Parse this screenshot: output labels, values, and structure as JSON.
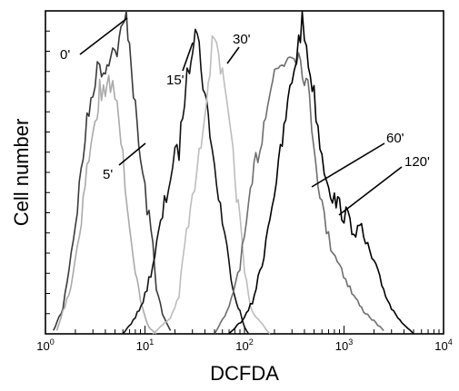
{
  "chart_data": {
    "type": "line",
    "subtype": "flow-cytometry-histogram-overlay",
    "title": "",
    "xlabel": "DCFDA",
    "ylabel": "Cell number",
    "x_scale": "log",
    "xlim": [
      1,
      10000
    ],
    "ylim": [
      0,
      1
    ],
    "grid": false,
    "legend": "none (direct labels with leader lines)",
    "x_ticks": [
      {
        "value": 1,
        "base": "10",
        "exp": "0"
      },
      {
        "value": 10,
        "base": "10",
        "exp": "1"
      },
      {
        "value": 100,
        "base": "10",
        "exp": "2"
      },
      {
        "value": 1000,
        "base": "10",
        "exp": "3"
      },
      {
        "value": 10000,
        "base": "10",
        "exp": "4"
      }
    ],
    "series": [
      {
        "name": "0'",
        "color": "#3a3a3a",
        "values": [
          [
            1.2,
            0.01
          ],
          [
            1.5,
            0.08
          ],
          [
            2.0,
            0.35
          ],
          [
            2.5,
            0.62
          ],
          [
            3.0,
            0.78
          ],
          [
            3.5,
            0.85
          ],
          [
            4.0,
            0.83
          ],
          [
            4.5,
            0.9
          ],
          [
            5.0,
            0.88
          ],
          [
            5.5,
            0.92
          ],
          [
            6.0,
            0.96
          ],
          [
            6.5,
            1.0
          ],
          [
            7.0,
            0.92
          ],
          [
            8.0,
            0.7
          ],
          [
            9.0,
            0.55
          ],
          [
            10.0,
            0.45
          ],
          [
            11.0,
            0.36
          ],
          [
            12.0,
            0.28
          ],
          [
            13.0,
            0.15
          ],
          [
            15.0,
            0.06
          ],
          [
            18.0,
            0.01
          ]
        ]
      },
      {
        "name": "5'",
        "color": "#aaaaaa",
        "values": [
          [
            1.3,
            0.01
          ],
          [
            1.8,
            0.15
          ],
          [
            2.2,
            0.32
          ],
          [
            2.5,
            0.48
          ],
          [
            3.0,
            0.62
          ],
          [
            3.3,
            0.7
          ],
          [
            3.5,
            0.77
          ],
          [
            4.0,
            0.74
          ],
          [
            4.5,
            0.8
          ],
          [
            5.0,
            0.75
          ],
          [
            5.5,
            0.66
          ],
          [
            6.0,
            0.55
          ],
          [
            7.0,
            0.36
          ],
          [
            8.0,
            0.2
          ],
          [
            9.0,
            0.1
          ],
          [
            10.0,
            0.05
          ],
          [
            11.0,
            0.02
          ],
          [
            13.0,
            0.0
          ]
        ]
      },
      {
        "name": "15'",
        "color": "#111111",
        "values": [
          [
            6.0,
            0.0
          ],
          [
            8.0,
            0.05
          ],
          [
            10.0,
            0.12
          ],
          [
            12.0,
            0.22
          ],
          [
            15.0,
            0.37
          ],
          [
            18.0,
            0.5
          ],
          [
            20.0,
            0.55
          ],
          [
            22.0,
            0.58
          ],
          [
            25.0,
            0.75
          ],
          [
            28.0,
            0.85
          ],
          [
            30.0,
            0.92
          ],
          [
            32.0,
            0.98
          ],
          [
            35.0,
            0.9
          ],
          [
            40.0,
            0.75
          ],
          [
            45.0,
            0.65
          ],
          [
            50.0,
            0.52
          ],
          [
            60.0,
            0.36
          ],
          [
            70.0,
            0.22
          ],
          [
            80.0,
            0.12
          ],
          [
            90.0,
            0.07
          ],
          [
            100.0,
            0.02
          ],
          [
            110.0,
            0.0
          ]
        ]
      },
      {
        "name": "30'",
        "color": "#bdbdbd",
        "values": [
          [
            12.0,
            0.0
          ],
          [
            18.0,
            0.05
          ],
          [
            22.0,
            0.12
          ],
          [
            25.0,
            0.28
          ],
          [
            30.0,
            0.42
          ],
          [
            35.0,
            0.55
          ],
          [
            40.0,
            0.72
          ],
          [
            45.0,
            0.85
          ],
          [
            50.0,
            0.95
          ],
          [
            55.0,
            0.9
          ],
          [
            60.0,
            0.8
          ],
          [
            70.0,
            0.65
          ],
          [
            80.0,
            0.5
          ],
          [
            90.0,
            0.35
          ],
          [
            100.0,
            0.2
          ],
          [
            110.0,
            0.12
          ],
          [
            120.0,
            0.07
          ],
          [
            150.0,
            0.03
          ],
          [
            180.0,
            0.0
          ]
        ]
      },
      {
        "name": "60'",
        "color": "#6e6e6e",
        "values": [
          [
            50.0,
            0.0
          ],
          [
            70.0,
            0.08
          ],
          [
            90.0,
            0.22
          ],
          [
            110.0,
            0.38
          ],
          [
            130.0,
            0.55
          ],
          [
            150.0,
            0.62
          ],
          [
            170.0,
            0.75
          ],
          [
            200.0,
            0.82
          ],
          [
            250.0,
            0.86
          ],
          [
            300.0,
            0.9
          ],
          [
            350.0,
            0.88
          ],
          [
            400.0,
            0.82
          ],
          [
            450.0,
            0.74
          ],
          [
            500.0,
            0.6
          ],
          [
            600.0,
            0.4
          ],
          [
            700.0,
            0.3
          ],
          [
            900.0,
            0.22
          ],
          [
            1200.0,
            0.13
          ],
          [
            1500.0,
            0.08
          ],
          [
            2000.0,
            0.04
          ],
          [
            2500.0,
            0.01
          ]
        ]
      },
      {
        "name": "120'",
        "color": "#000000",
        "values": [
          [
            70.0,
            0.0
          ],
          [
            100.0,
            0.05
          ],
          [
            120.0,
            0.1
          ],
          [
            150.0,
            0.22
          ],
          [
            180.0,
            0.38
          ],
          [
            220.0,
            0.52
          ],
          [
            260.0,
            0.68
          ],
          [
            300.0,
            0.8
          ],
          [
            350.0,
            0.92
          ],
          [
            380.0,
            0.98
          ],
          [
            420.0,
            0.9
          ],
          [
            500.0,
            0.75
          ],
          [
            600.0,
            0.56
          ],
          [
            700.0,
            0.48
          ],
          [
            800.0,
            0.42
          ],
          [
            900.0,
            0.4
          ],
          [
            1000.0,
            0.38
          ],
          [
            1200.0,
            0.34
          ],
          [
            1500.0,
            0.32
          ],
          [
            2000.0,
            0.22
          ],
          [
            2500.0,
            0.14
          ],
          [
            3000.0,
            0.08
          ],
          [
            4000.0,
            0.03
          ],
          [
            5000.0,
            0.0
          ]
        ]
      }
    ]
  }
}
